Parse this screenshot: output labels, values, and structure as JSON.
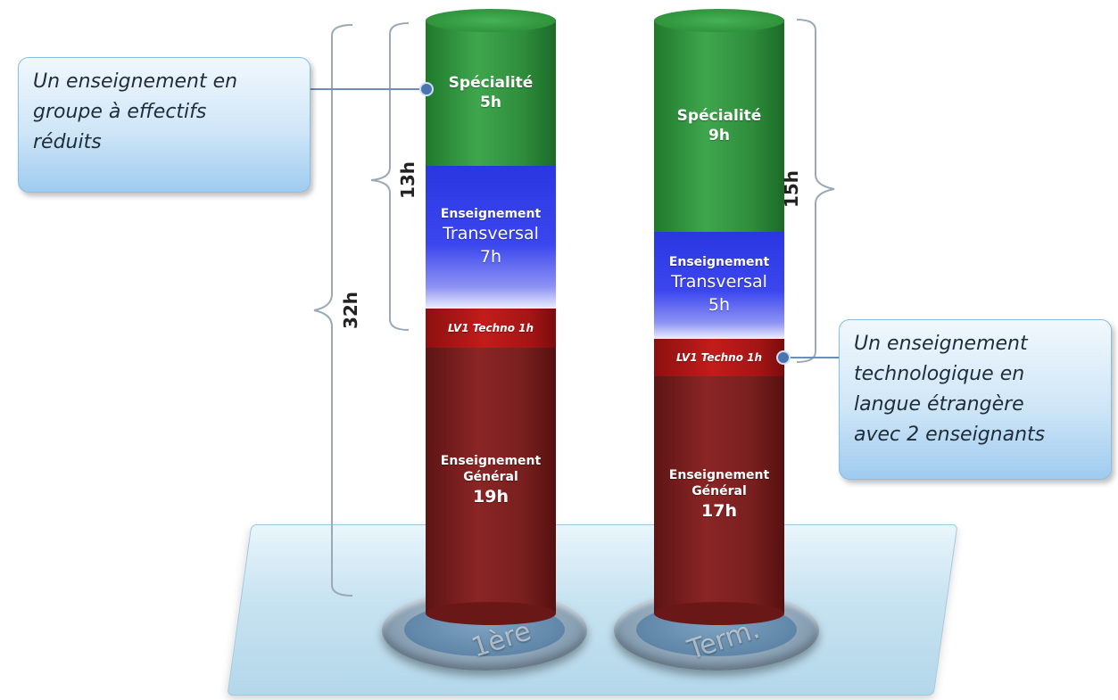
{
  "columns": [
    {
      "base_label": "1ère",
      "total_label": "32h",
      "specialty_bracket_label": "13h",
      "segments": {
        "specialite": {
          "title": "Spécialité",
          "hours": "5h"
        },
        "transversal": {
          "line1": "Enseignement",
          "line2": "Transversal",
          "hours": "7h"
        },
        "lv1": {
          "label": "LV1 Techno 1h"
        },
        "general": {
          "line1": "Enseignement",
          "line2": "Général",
          "hours": "19h"
        }
      }
    },
    {
      "base_label": "Term.",
      "specialty_bracket_label": "15h",
      "segments": {
        "specialite": {
          "title": "Spécialité",
          "hours": "9h"
        },
        "transversal": {
          "line1": "Enseignement",
          "line2": "Transversal",
          "hours": "5h"
        },
        "lv1": {
          "label": "LV1 Techno 1h"
        },
        "general": {
          "line1": "Enseignement",
          "line2": "Général",
          "hours": "17h"
        }
      }
    }
  ],
  "callouts": {
    "left": {
      "lines": [
        "Un enseignement en",
        "groupe à effectifs",
        "réduits"
      ]
    },
    "right": {
      "lines": [
        "Un enseignement",
        "technologique en",
        "langue étrangère",
        "avec 2 enseignants"
      ]
    }
  },
  "colors": {
    "specialite": "#2e8d3b",
    "transversal": "#3b46ef",
    "lv1": "#c21c1c",
    "general": "#7a1f1f"
  }
}
